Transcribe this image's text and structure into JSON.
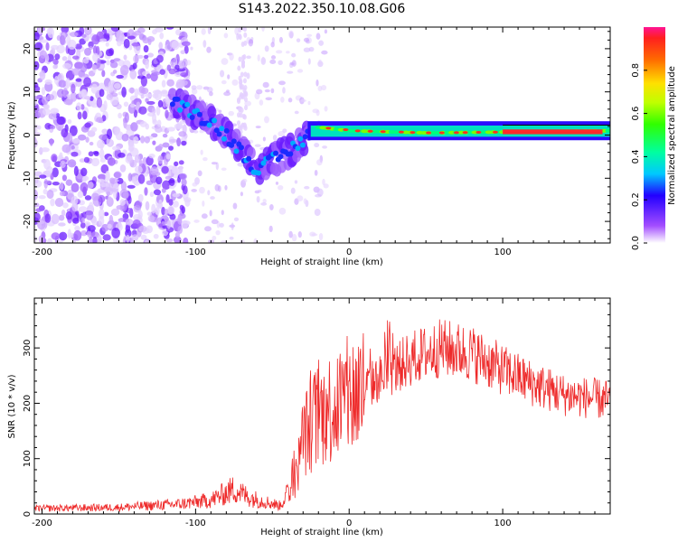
{
  "title": "S143.2022.350.10.08.G06",
  "chart_data": [
    {
      "type": "heatmap",
      "xlabel": "Height of straight line (km)",
      "ylabel": "Frequency (Hz)",
      "xlim": [
        -205,
        170
      ],
      "ylim": [
        -25,
        25
      ],
      "xticks": [
        -200,
        -100,
        0,
        100
      ],
      "yticks": [
        -20,
        -10,
        0,
        10,
        20
      ],
      "colorbar": {
        "label": "Normalized spectral amplitude",
        "range": [
          0,
          1
        ],
        "ticks": [
          0.0,
          0.2,
          0.4,
          0.6,
          0.8
        ],
        "tick_labels": [
          "0.0",
          "0.2",
          "0.4",
          "0.6",
          "0.8"
        ]
      },
      "ridge": [
        {
          "x": -110,
          "y": 7
        },
        {
          "x": -100,
          "y": 5
        },
        {
          "x": -90,
          "y": 3
        },
        {
          "x": -80,
          "y": 0
        },
        {
          "x": -70,
          "y": -4
        },
        {
          "x": -60,
          "y": -8
        },
        {
          "x": -50,
          "y": -6
        },
        {
          "x": -40,
          "y": -4
        },
        {
          "x": -30,
          "y": -1
        },
        {
          "x": -25,
          "y": 2
        },
        {
          "x": 0,
          "y": 1
        },
        {
          "x": 50,
          "y": 0.5
        },
        {
          "x": 100,
          "y": 0.7
        },
        {
          "x": 170,
          "y": 1
        }
      ]
    },
    {
      "type": "line",
      "xlabel": "Height of straight line (km)",
      "ylabel": "SNR (10 * v/v)",
      "xlim": [
        -205,
        170
      ],
      "ylim": [
        0,
        390
      ],
      "xticks": [
        -200,
        -100,
        0,
        100
      ],
      "yticks": [
        0,
        100,
        200,
        300
      ],
      "series": [
        {
          "color": "#ee2a2a",
          "envelope": [
            {
              "x": -205,
              "y": 10
            },
            {
              "x": -150,
              "y": 12
            },
            {
              "x": -110,
              "y": 18
            },
            {
              "x": -90,
              "y": 25
            },
            {
              "x": -75,
              "y": 45
            },
            {
              "x": -65,
              "y": 30
            },
            {
              "x": -45,
              "y": 15
            },
            {
              "x": -35,
              "y": 60
            },
            {
              "x": -30,
              "y": 140
            },
            {
              "x": -20,
              "y": 180
            },
            {
              "x": -10,
              "y": 195
            },
            {
              "x": 0,
              "y": 210
            },
            {
              "x": 20,
              "y": 245
            },
            {
              "x": 40,
              "y": 280
            },
            {
              "x": 60,
              "y": 300
            },
            {
              "x": 80,
              "y": 290
            },
            {
              "x": 100,
              "y": 260
            },
            {
              "x": 120,
              "y": 235
            },
            {
              "x": 140,
              "y": 215
            },
            {
              "x": 170,
              "y": 205
            }
          ]
        }
      ]
    }
  ]
}
